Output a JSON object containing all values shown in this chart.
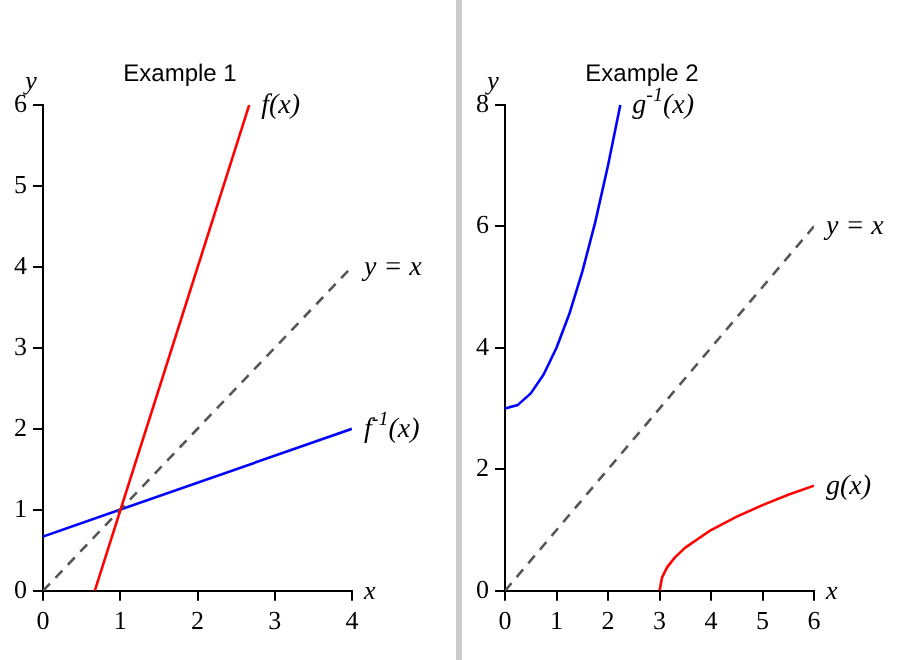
{
  "chart_data": [
    {
      "type": "line",
      "title": "Example 1",
      "xlabel": "x",
      "ylabel": "y",
      "xlim": [
        0,
        4
      ],
      "ylim": [
        0,
        6
      ],
      "xticks": [
        0,
        1,
        2,
        3,
        4
      ],
      "yticks": [
        0,
        1,
        2,
        3,
        4,
        5,
        6
      ],
      "grid": false,
      "legend": false,
      "marker": "none",
      "series": [
        {
          "name": "f(x)",
          "color": "#ff0000",
          "x": [
            0.67,
            2.67
          ],
          "values": [
            0,
            6
          ]
        },
        {
          "name": "y = x",
          "color": "#555555",
          "line_style": "dashed",
          "x": [
            0,
            4
          ],
          "values": [
            0,
            4
          ]
        },
        {
          "name": "f$^{-1}$(x)",
          "color": "#0000ff",
          "x": [
            0,
            4
          ],
          "values": [
            0.67,
            2
          ]
        }
      ]
    },
    {
      "type": "line",
      "title": "Example 2",
      "xlabel": "x",
      "ylabel": "y",
      "xlim": [
        0,
        6
      ],
      "ylim": [
        0,
        8
      ],
      "xticks": [
        0,
        1,
        2,
        3,
        4,
        5,
        6
      ],
      "yticks": [
        0,
        2,
        4,
        6,
        8
      ],
      "grid": false,
      "legend": false,
      "marker": "none",
      "series": [
        {
          "name": "g$^{-1}$(x)",
          "color": "#0000ff",
          "x": [
            0,
            0.25,
            0.5,
            0.75,
            1,
            1.25,
            1.5,
            1.75,
            2,
            2.24
          ],
          "values": [
            3,
            3.06,
            3.25,
            3.56,
            4,
            4.56,
            5.25,
            6.06,
            7,
            8
          ]
        },
        {
          "name": "y = x",
          "color": "#555555",
          "line_style": "dashed",
          "x": [
            0,
            6
          ],
          "values": [
            0,
            6
          ]
        },
        {
          "name": "g(x)",
          "color": "#ff0000",
          "x": [
            3,
            3.05,
            3.15,
            3.3,
            3.5,
            4,
            4.5,
            5,
            5.5,
            6
          ],
          "values": [
            0,
            0.22,
            0.39,
            0.55,
            0.71,
            1,
            1.22,
            1.41,
            1.58,
            1.73
          ]
        }
      ]
    }
  ]
}
